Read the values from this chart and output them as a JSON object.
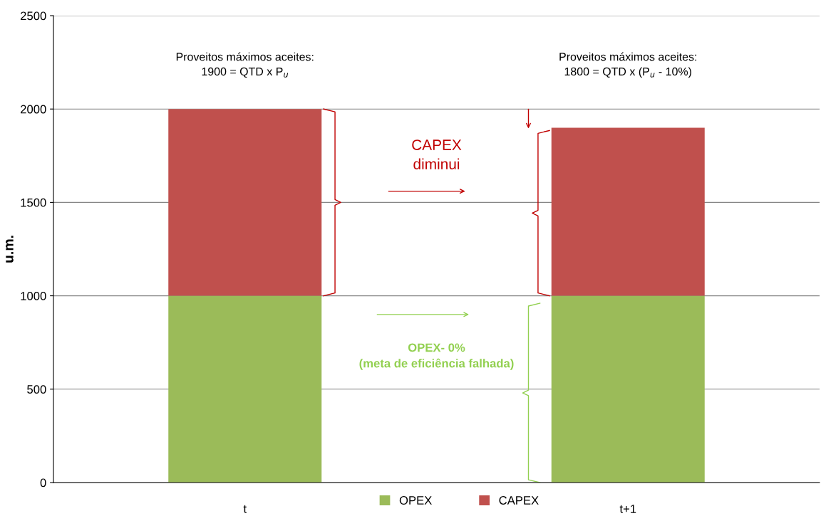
{
  "chart_data": {
    "type": "bar",
    "stacked": true,
    "categories": [
      "t",
      "t+1"
    ],
    "series": [
      {
        "name": "OPEX",
        "color": "#9bbb59",
        "values": [
          1000,
          1000
        ]
      },
      {
        "name": "CAPEX",
        "color": "#c0504d",
        "values": [
          1000,
          900
        ]
      }
    ],
    "ylabel": "u.m.",
    "ylim": [
      0,
      2500
    ],
    "yticks": [
      0,
      500,
      1000,
      1500,
      2000,
      2500
    ],
    "grid": "y",
    "legend": "bottom",
    "annotations": [
      "Proveitos máximos aceites:\n1900 = QTD x P$_{u}$",
      "Proveitos máximos aceites:\n1800 = QTD x (P$_{u}$ - 10%)",
      "CAPEX\ndiminui",
      "OPEX- 0%\n(meta de eficiência falhada)"
    ]
  }
}
